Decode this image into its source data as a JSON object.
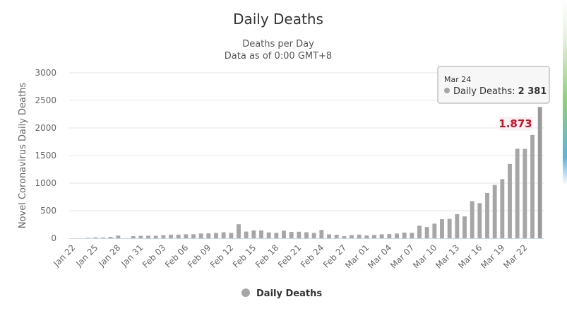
{
  "chart_data": {
    "type": "bar",
    "title": "Daily Deaths",
    "subtitle_lines": [
      "Deaths per Day",
      "Data as of 0:00 GMT+8"
    ],
    "ylabel": "Novel Coronavirus Daily Deaths",
    "xlabel": "",
    "ylim": [
      0,
      3000
    ],
    "yticks": [
      0,
      500,
      1000,
      1500,
      2000,
      2500,
      3000
    ],
    "grid": true,
    "legend_position": "bottom-center",
    "categories": [
      "Jan 22",
      "Jan 23",
      "Jan 24",
      "Jan 25",
      "Jan 26",
      "Jan 27",
      "Jan 28",
      "Jan 29",
      "Jan 30",
      "Jan 31",
      "Feb 01",
      "Feb 02",
      "Feb 03",
      "Feb 04",
      "Feb 05",
      "Feb 06",
      "Feb 07",
      "Feb 08",
      "Feb 09",
      "Feb 10",
      "Feb 11",
      "Feb 12",
      "Feb 13",
      "Feb 14",
      "Feb 15",
      "Feb 16",
      "Feb 17",
      "Feb 18",
      "Feb 19",
      "Feb 20",
      "Feb 21",
      "Feb 22",
      "Feb 23",
      "Feb 24",
      "Feb 25",
      "Feb 26",
      "Feb 27",
      "Feb 28",
      "Feb 29",
      "Mar 01",
      "Mar 02",
      "Mar 03",
      "Mar 04",
      "Mar 05",
      "Mar 06",
      "Mar 07",
      "Mar 08",
      "Mar 09",
      "Mar 10",
      "Mar 11",
      "Mar 12",
      "Mar 13",
      "Mar 14",
      "Mar 15",
      "Mar 16",
      "Mar 17",
      "Mar 18",
      "Mar 19",
      "Mar 20",
      "Mar 21",
      "Mar 22",
      "Mar 23",
      "Mar 24"
    ],
    "x_tick_labels": [
      "Jan 22",
      "Jan 25",
      "Jan 28",
      "Jan 31",
      "Feb 03",
      "Feb 06",
      "Feb 09",
      "Feb 12",
      "Feb 15",
      "Feb 18",
      "Feb 21",
      "Feb 24",
      "Feb 27",
      "Mar 01",
      "Mar 04",
      "Mar 07",
      "Mar 10",
      "Mar 13",
      "Mar 16",
      "Mar 19",
      "Mar 22"
    ],
    "series": [
      {
        "name": "Daily Deaths",
        "color": "#a6a6a6",
        "values": [
          0,
          1,
          8,
          16,
          14,
          26,
          49,
          2,
          38,
          43,
          46,
          45,
          57,
          65,
          66,
          72,
          73,
          86,
          89,
          97,
          108,
          97,
          254,
          121,
          143,
          142,
          106,
          98,
          139,
          115,
          118,
          109,
          97,
          150,
          71,
          64,
          37,
          58,
          67,
          51,
          61,
          72,
          76,
          86,
          103,
          99,
          228,
          203,
          265,
          346,
          352,
          438,
          397,
          672,
          637,
          822,
          967,
          1072,
          1348,
          1625,
          1620,
          1873,
          2381
        ]
      }
    ],
    "annotation": {
      "category": "Mar 23",
      "text": "1.873",
      "color": "#e8001c"
    },
    "tooltip": {
      "date": "Mar 24",
      "series": "Daily Deaths",
      "value_text": "2 381"
    }
  },
  "legend": {
    "label": "Daily Deaths"
  }
}
